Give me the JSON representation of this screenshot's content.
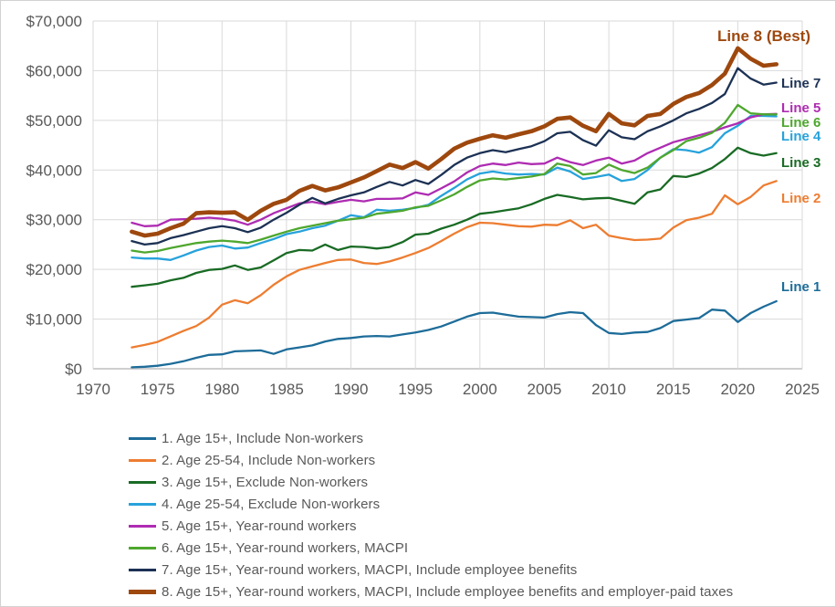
{
  "chart_data": {
    "type": "line",
    "title": "",
    "xlabel": "",
    "ylabel": "",
    "xlim": [
      1970,
      2025
    ],
    "ylim": [
      0,
      70000
    ],
    "grid": true,
    "legend_position": "bottom-left",
    "x_ticks": [
      {
        "value": 1970,
        "label": "1970"
      },
      {
        "value": 1975,
        "label": "1975"
      },
      {
        "value": 1980,
        "label": "1980"
      },
      {
        "value": 1985,
        "label": "1985"
      },
      {
        "value": 1990,
        "label": "1990"
      },
      {
        "value": 1995,
        "label": "1995"
      },
      {
        "value": 2000,
        "label": "2000"
      },
      {
        "value": 2005,
        "label": "2005"
      },
      {
        "value": 2010,
        "label": "2010"
      },
      {
        "value": 2015,
        "label": "2015"
      },
      {
        "value": 2020,
        "label": "2020"
      },
      {
        "value": 2025,
        "label": "2025"
      }
    ],
    "y_ticks": [
      {
        "value": 0,
        "label": "$0"
      },
      {
        "value": 10000,
        "label": "$10,000"
      },
      {
        "value": 20000,
        "label": "$20,000"
      },
      {
        "value": 30000,
        "label": "$30,000"
      },
      {
        "value": 40000,
        "label": "$40,000"
      },
      {
        "value": 50000,
        "label": "$50,000"
      },
      {
        "value": 60000,
        "label": "$60,000"
      },
      {
        "value": 70000,
        "label": "$70,000"
      }
    ],
    "x": [
      1973,
      1974,
      1975,
      1976,
      1977,
      1978,
      1979,
      1980,
      1981,
      1982,
      1983,
      1984,
      1985,
      1986,
      1987,
      1988,
      1989,
      1990,
      1991,
      1992,
      1993,
      1994,
      1995,
      1996,
      1997,
      1998,
      1999,
      2000,
      2001,
      2002,
      2003,
      2004,
      2005,
      2006,
      2007,
      2008,
      2009,
      2010,
      2011,
      2012,
      2013,
      2014,
      2015,
      2016,
      2017,
      2018,
      2019,
      2020,
      2021,
      2022,
      2023
    ],
    "series": [
      {
        "id": 1,
        "name": "1. Age 15+, Include Non-workers",
        "color": "#1D6C99",
        "width": 2.3,
        "values": [
          300,
          400,
          600,
          1000,
          1500,
          2200,
          2800,
          2900,
          3500,
          3600,
          3700,
          3000,
          3900,
          4300,
          4700,
          5500,
          6000,
          6200,
          6500,
          6600,
          6500,
          6900,
          7300,
          7800,
          8500,
          9500,
          10500,
          11200,
          11300,
          10900,
          10500,
          10400,
          10300,
          11000,
          11400,
          11200,
          8800,
          7200,
          7000,
          7300,
          7400,
          8200,
          9600,
          9900,
          10200,
          11900,
          11700,
          9400,
          11200,
          12500,
          13600
        ]
      },
      {
        "id": 2,
        "name": "2. Age 25-54, Include Non-workers",
        "color": "#ED7D31",
        "width": 2.3,
        "values": [
          4300,
          4800,
          5400,
          6500,
          7600,
          8600,
          10300,
          12900,
          13800,
          13200,
          14800,
          16900,
          18600,
          19900,
          20600,
          21300,
          21900,
          22000,
          21300,
          21100,
          21600,
          22400,
          23300,
          24300,
          25700,
          27200,
          28500,
          29400,
          29300,
          29000,
          28700,
          28600,
          29000,
          28900,
          29900,
          28300,
          29000,
          26800,
          26300,
          25900,
          26000,
          26200,
          28400,
          29900,
          30400,
          31200,
          34900,
          33100,
          34600,
          36900,
          37800
        ]
      },
      {
        "id": 3,
        "name": "3. Age 15+, Exclude Non-workers",
        "color": "#196B24",
        "width": 2.3,
        "values": [
          16500,
          16800,
          17100,
          17800,
          18300,
          19300,
          19900,
          20100,
          20800,
          19900,
          20400,
          21800,
          23300,
          23900,
          23800,
          25000,
          23900,
          24600,
          24500,
          24200,
          24500,
          25500,
          27000,
          27200,
          28200,
          29000,
          30000,
          31200,
          31500,
          31900,
          32300,
          33100,
          34200,
          35000,
          34600,
          34100,
          34300,
          34400,
          33800,
          33200,
          35500,
          36100,
          38800,
          38600,
          39300,
          40400,
          42200,
          44500,
          43400,
          42900,
          43400
        ]
      },
      {
        "id": 4,
        "name": "4. Age 25-54, Exclude Non-workers",
        "color": "#27A2DB",
        "width": 2.3,
        "values": [
          22400,
          22200,
          22200,
          21900,
          22800,
          23800,
          24500,
          24800,
          24200,
          24400,
          25300,
          26100,
          27100,
          27600,
          28300,
          28800,
          29800,
          30900,
          30500,
          32000,
          31800,
          32000,
          32400,
          33000,
          34800,
          36400,
          38100,
          39300,
          39700,
          39300,
          39100,
          39200,
          39100,
          40500,
          39700,
          38200,
          38600,
          39100,
          37800,
          38200,
          40000,
          42500,
          44200,
          44000,
          43500,
          44600,
          47400,
          48900,
          50900,
          50900,
          50800
        ]
      },
      {
        "id": 5,
        "name": "5. Age 15+, Year-round workers",
        "color": "#AE2CB2",
        "width": 2.3,
        "values": [
          29400,
          28700,
          28800,
          30000,
          30100,
          30200,
          30400,
          30200,
          29800,
          29000,
          30000,
          31300,
          32300,
          33300,
          33600,
          33100,
          33600,
          34000,
          33700,
          34200,
          34200,
          34300,
          35500,
          35000,
          36300,
          37700,
          39500,
          40800,
          41300,
          41000,
          41500,
          41200,
          41300,
          42500,
          41600,
          41000,
          41900,
          42500,
          41300,
          41900,
          43400,
          44500,
          45600,
          46300,
          47000,
          47700,
          48600,
          49400,
          50600,
          51200,
          51300
        ]
      },
      {
        "id": 6,
        "name": "6. Age 15+, Year-round workers, MACPI",
        "color": "#4EA72E",
        "width": 2.3,
        "values": [
          23800,
          23400,
          23700,
          24300,
          24800,
          25300,
          25600,
          25800,
          25600,
          25300,
          26000,
          26800,
          27600,
          28300,
          28800,
          29300,
          29800,
          30100,
          30400,
          31200,
          31500,
          31800,
          32500,
          32800,
          33900,
          35100,
          36600,
          37900,
          38300,
          38100,
          38400,
          38700,
          39200,
          41300,
          40800,
          39100,
          39400,
          41100,
          40000,
          39400,
          40500,
          42500,
          44000,
          45800,
          46500,
          47500,
          49500,
          53100,
          51400,
          51200,
          51200
        ]
      },
      {
        "id": 7,
        "name": "7. Age 15+, Year-round workers, MACPI, Include employee benefits",
        "color": "#1C3154",
        "width": 2.3,
        "values": [
          25700,
          25000,
          25300,
          26300,
          26900,
          27600,
          28300,
          28700,
          28300,
          27500,
          28400,
          30000,
          31400,
          33000,
          34400,
          33300,
          34200,
          34900,
          35500,
          36600,
          37600,
          36900,
          38000,
          37200,
          39000,
          41000,
          42500,
          43400,
          44000,
          43600,
          44200,
          44800,
          45800,
          47400,
          47700,
          46000,
          44900,
          48000,
          46600,
          46200,
          47800,
          48800,
          50000,
          51400,
          52300,
          53500,
          55300,
          60500,
          58400,
          57200,
          57600
        ]
      },
      {
        "id": 8,
        "name": "8. Age 15+, Year-round workers, MACPI, Include employee benefits and employer-paid taxes",
        "color": "#9E480E",
        "width": 4.6,
        "values": [
          27600,
          26800,
          27200,
          28300,
          29200,
          31300,
          31500,
          31400,
          31500,
          30000,
          31800,
          33200,
          34000,
          35800,
          36800,
          35900,
          36500,
          37500,
          38500,
          39800,
          41100,
          40400,
          41600,
          40300,
          42200,
          44300,
          45500,
          46300,
          47000,
          46500,
          47200,
          47800,
          48800,
          50300,
          50600,
          48900,
          47800,
          51300,
          49400,
          49000,
          50900,
          51300,
          53300,
          54700,
          55500,
          57100,
          59400,
          64500,
          62400,
          61000,
          61300
        ]
      }
    ],
    "annotations": [
      {
        "text": "Line 8 (Best)",
        "x": 836,
        "y": 44,
        "color": "#9E480E",
        "size": 17,
        "anchor": "middle"
      },
      {
        "text": "Line 7",
        "x": 855,
        "y": 95,
        "color": "#1C3154",
        "size": 15,
        "anchor": "start"
      },
      {
        "text": "Line 5",
        "x": 855,
        "y": 122,
        "color": "#AE2CB2",
        "size": 15,
        "anchor": "start"
      },
      {
        "text": "Line 6",
        "x": 855,
        "y": 138,
        "color": "#4EA72E",
        "size": 15,
        "anchor": "start"
      },
      {
        "text": "Line 4",
        "x": 855,
        "y": 153,
        "color": "#27A2DB",
        "size": 15,
        "anchor": "start"
      },
      {
        "text": "Line 3",
        "x": 855,
        "y": 182,
        "color": "#196B24",
        "size": 15,
        "anchor": "start"
      },
      {
        "text": "Line 2",
        "x": 855,
        "y": 221,
        "color": "#ED7D31",
        "size": 15,
        "anchor": "start"
      },
      {
        "text": "Line 1",
        "x": 855,
        "y": 318,
        "color": "#1D6C99",
        "size": 15,
        "anchor": "start"
      }
    ],
    "colors": {
      "gridline": "#d9d9d9",
      "axis_line": "#bfbfbf",
      "tick_label": "#595959",
      "legend_text": "#595959",
      "background": "#ffffff"
    }
  },
  "legend": {
    "items": [
      {
        "label": "1. Age 15+, Include Non-workers",
        "color": "#1D6C99",
        "thick": false
      },
      {
        "label": "2. Age 25-54, Include Non-workers",
        "color": "#ED7D31",
        "thick": false
      },
      {
        "label": "3. Age 15+, Exclude Non-workers",
        "color": "#196B24",
        "thick": false
      },
      {
        "label": "4. Age 25-54, Exclude Non-workers",
        "color": "#27A2DB",
        "thick": false
      },
      {
        "label": "5. Age 15+, Year-round workers",
        "color": "#AE2CB2",
        "thick": false
      },
      {
        "label": "6. Age 15+, Year-round workers, MACPI",
        "color": "#4EA72E",
        "thick": false
      },
      {
        "label": "7. Age 15+, Year-round workers, MACPI, Include employee benefits",
        "color": "#1C3154",
        "thick": false
      },
      {
        "label": "8. Age 15+, Year-round workers, MACPI, Include employee benefits and employer-paid taxes",
        "color": "#9E480E",
        "thick": true
      }
    ]
  }
}
